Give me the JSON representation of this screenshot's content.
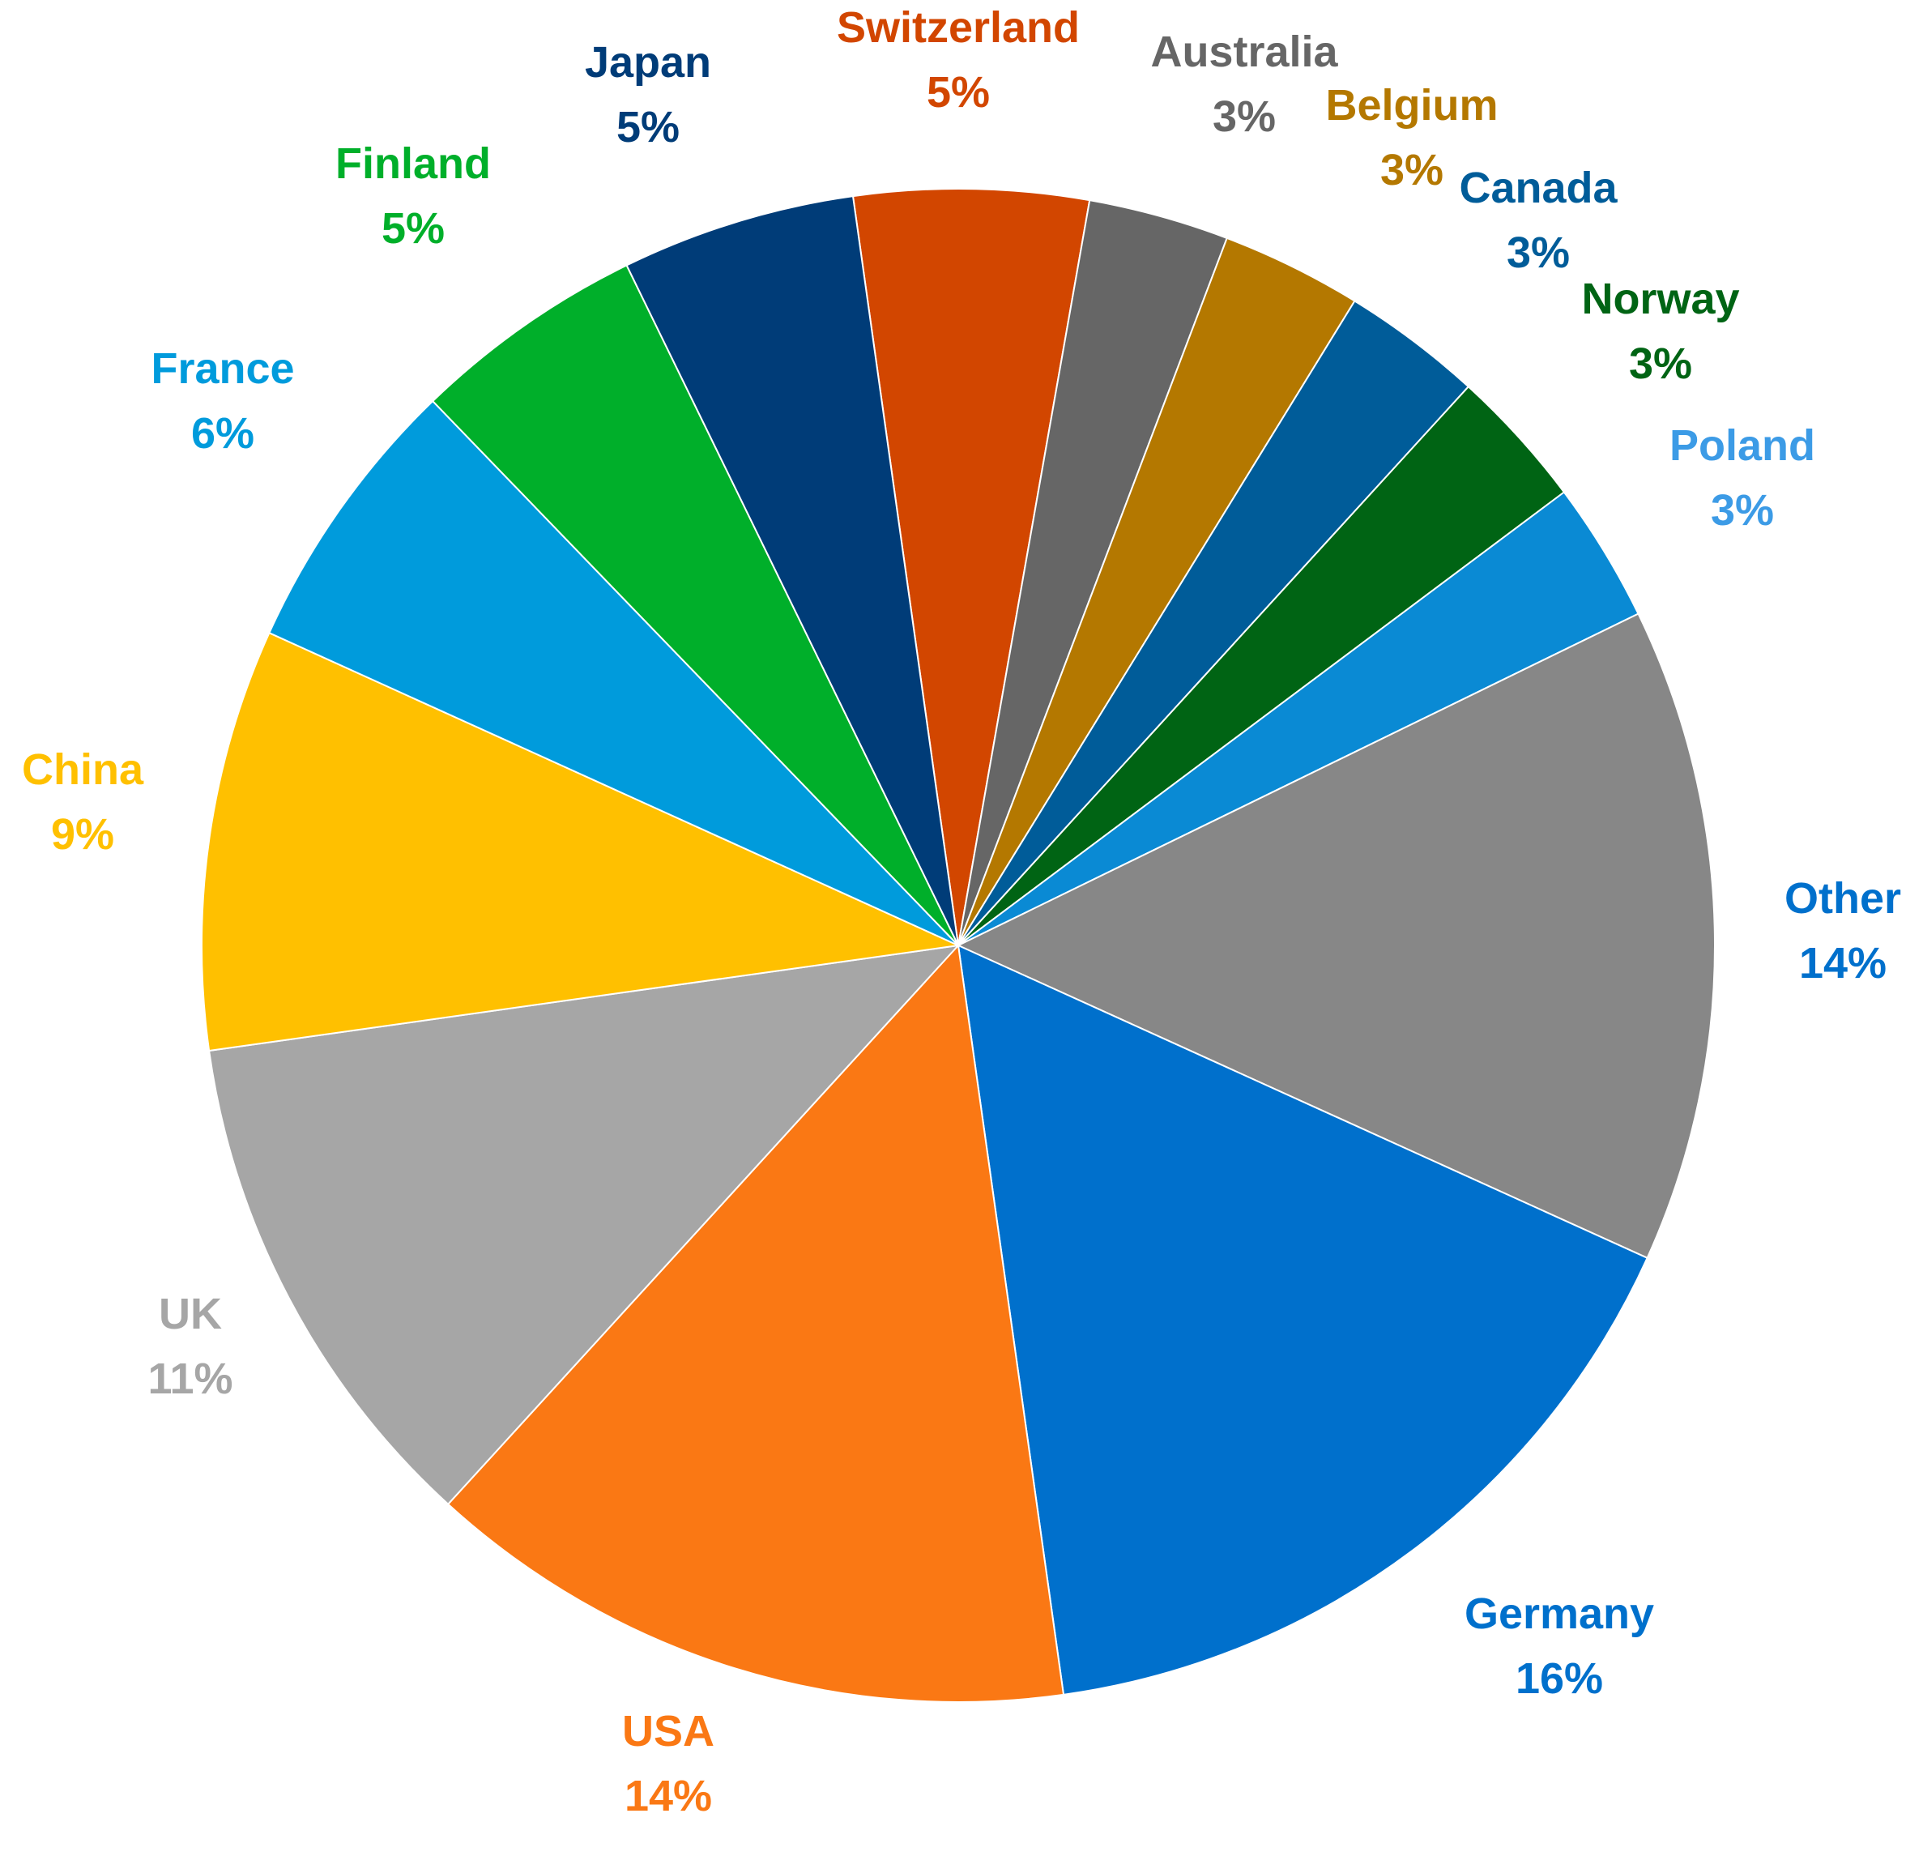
{
  "chart_data": {
    "type": "pie",
    "title": "",
    "slices": [
      {
        "label": "Switzerland",
        "value": 5,
        "value_text": "5%",
        "color": "#D24600"
      },
      {
        "label": "Australia",
        "value": 3,
        "value_text": "3%",
        "color": "#666666"
      },
      {
        "label": "Belgium",
        "value": 3,
        "value_text": "3%",
        "color": "#B47800"
      },
      {
        "label": "Canada",
        "value": 3,
        "value_text": "3%",
        "color": "#005C99"
      },
      {
        "label": "Norway",
        "value": 3,
        "value_text": "3%",
        "color": "#006414"
      },
      {
        "label": "Poland",
        "value": 3,
        "value_text": "3%",
        "color": "#0A8AD4"
      },
      {
        "label": "Other",
        "value": 14,
        "value_text": "14%",
        "color": "#878787"
      },
      {
        "label": "Germany",
        "value": 16,
        "value_text": "16%",
        "color": "#0070CC"
      },
      {
        "label": "USA",
        "value": 14,
        "value_text": "14%",
        "color": "#FA7814"
      },
      {
        "label": "UK",
        "value": 11,
        "value_text": "11%",
        "color": "#A6A6A6"
      },
      {
        "label": "China",
        "value": 9,
        "value_text": "9%",
        "color": "#FFC000"
      },
      {
        "label": "France",
        "value": 6,
        "value_text": "6%",
        "color": "#009BDC"
      },
      {
        "label": "Finland",
        "value": 5,
        "value_text": "5%",
        "color": "#00AF2A"
      },
      {
        "label": "Japan",
        "value": 5,
        "value_text": "5%",
        "color": "#003C78"
      }
    ],
    "label_colors": {
      "Switzerland": "#D24600",
      "Australia": "#666666",
      "Belgium": "#B47800",
      "Canada": "#005C99",
      "Norway": "#006414",
      "Poland": "#3C9BE6",
      "Other": "#0070CC",
      "Germany": "#0070CC",
      "USA": "#FA7814",
      "UK": "#A6A6A6",
      "China": "#FFC000",
      "France": "#009BDC",
      "Finland": "#00AF2A",
      "Japan": "#003C78"
    },
    "legend": "none",
    "data_labels": "outside"
  }
}
